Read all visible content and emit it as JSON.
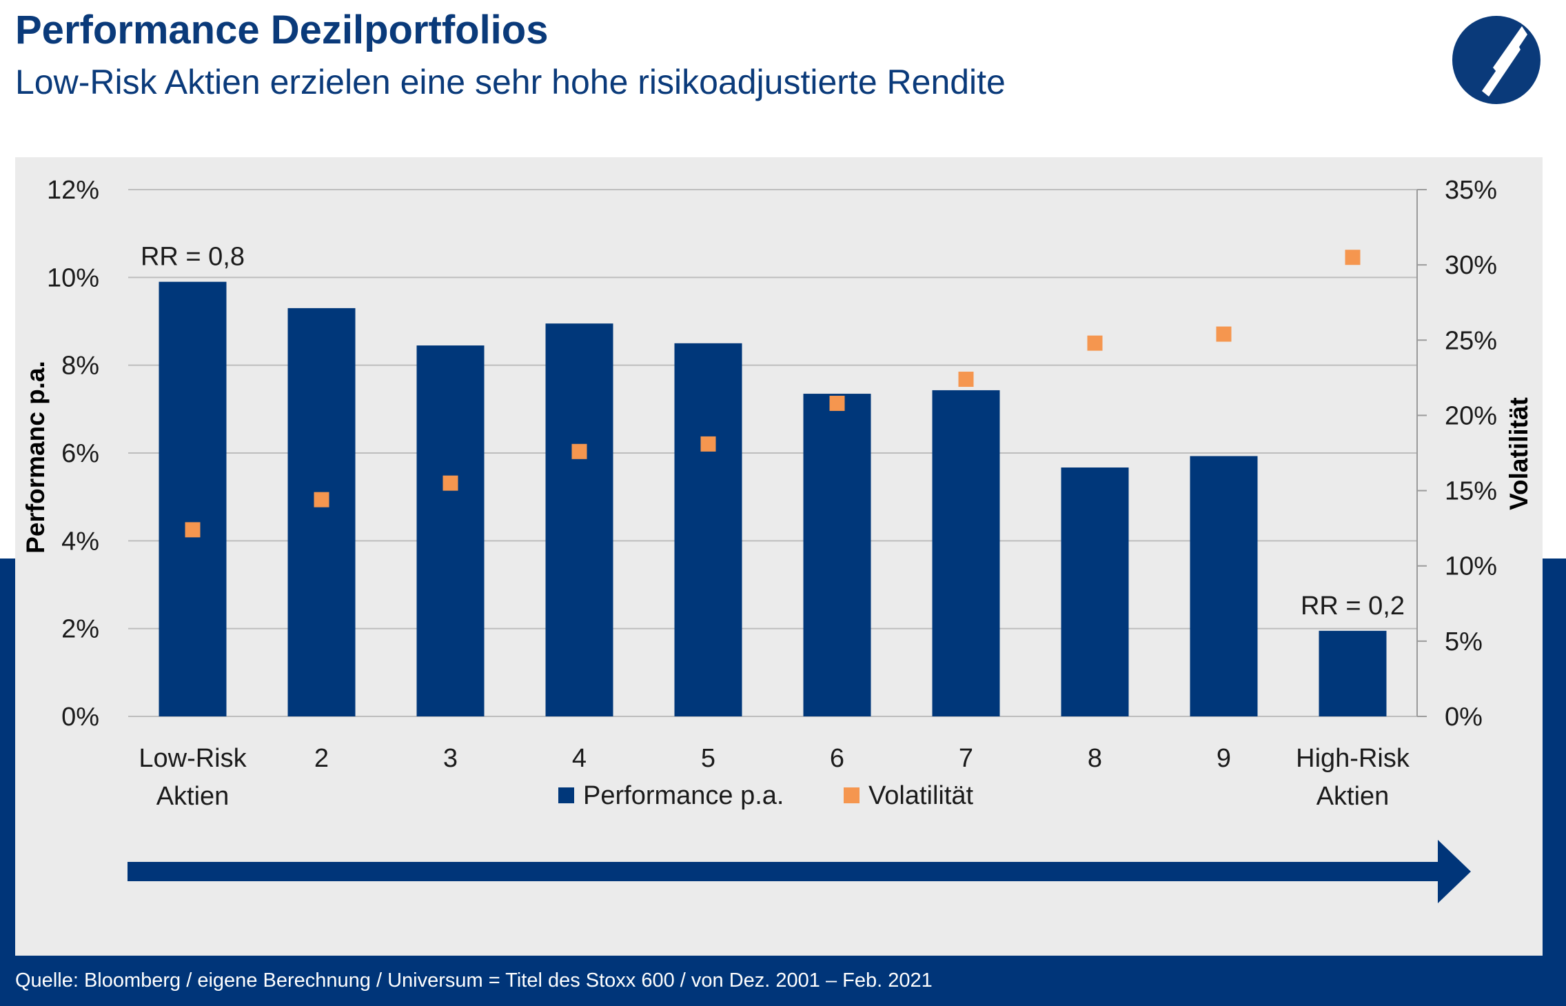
{
  "header": {
    "title": "Performance Dezilportfolios",
    "subtitle": "Low-Risk Aktien erzielen eine sehr hohe risikoadjustierte Rendite",
    "logo_icon": "company-logo-icon"
  },
  "footer": {
    "source": "Quelle: Bloomberg / eigene Berechnung / Universum = Titel des Stoxx 600 / von Dez. 2001 – Feb. 2021"
  },
  "colors": {
    "brand_blue": "#003579",
    "title_blue": "#0a3a7a",
    "bar_blue": "#00377a",
    "volatility_orange": "#f5964f",
    "panel_gray": "#ebebeb",
    "grid_gray": "#bdbdbd"
  },
  "chart_data": {
    "type": "bar",
    "categories": [
      [
        "Low-Risk",
        "Aktien"
      ],
      [
        "2"
      ],
      [
        "3"
      ],
      [
        "4"
      ],
      [
        "5"
      ],
      [
        "6"
      ],
      [
        "7"
      ],
      [
        "8"
      ],
      [
        "9"
      ],
      [
        "High-Risk",
        "Aktien"
      ]
    ],
    "series": [
      {
        "name": "Performance p.a.",
        "type": "bar",
        "axis": "left",
        "color": "#00377a",
        "values": [
          0.099,
          0.093,
          0.0845,
          0.0895,
          0.085,
          0.0735,
          0.0743,
          0.0567,
          0.0593,
          0.0195
        ]
      },
      {
        "name": "Volatilität",
        "type": "scatter",
        "axis": "right",
        "color": "#f5964f",
        "values": [
          0.124,
          0.144,
          0.155,
          0.176,
          0.181,
          0.208,
          0.224,
          0.248,
          0.254,
          0.305
        ]
      }
    ],
    "ylabel": "Performanc p.a.",
    "y2label": "Volatilität",
    "ylim": [
      0,
      0.12
    ],
    "y2lim": [
      0,
      0.35
    ],
    "yticks": [
      "0%",
      "2%",
      "4%",
      "6%",
      "8%",
      "10%",
      "12%"
    ],
    "y2ticks": [
      "0%",
      "5%",
      "10%",
      "15%",
      "20%",
      "25%",
      "30%",
      "35%"
    ],
    "grid": true,
    "legend_position": "bottom",
    "annotations": [
      {
        "text": "RR = 0,8",
        "category_index": 0
      },
      {
        "text": "RR = 0,2",
        "category_index": 9
      }
    ],
    "risk_arrow": {
      "from": "Low-Risk Aktien",
      "to": "High-Risk Aktien"
    }
  }
}
